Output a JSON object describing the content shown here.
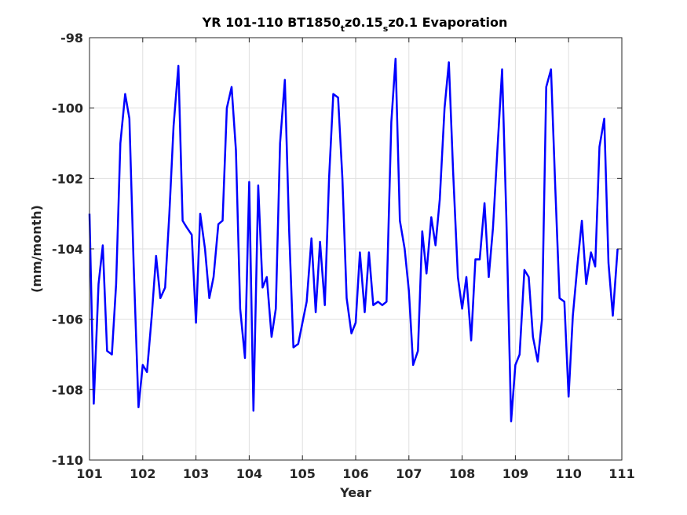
{
  "chart_data": {
    "type": "line",
    "title": {
      "prefix": "YR 101-110 BT1850",
      "sub_t": "t",
      "mid": "z0.15",
      "sub_s": "s",
      "suffix": "z0.1 Evaporation"
    },
    "xlabel": "Year",
    "ylabel": "(mm/month)",
    "xlim": [
      101,
      111
    ],
    "ylim": [
      -110,
      -98
    ],
    "xticks": [
      101,
      102,
      103,
      104,
      105,
      106,
      107,
      108,
      109,
      110,
      111
    ],
    "yticks": [
      -110,
      -108,
      -106,
      -104,
      -102,
      -100,
      -98
    ],
    "grid": true,
    "colors": {
      "series": "#0000ff",
      "axes": "#262626",
      "grid": "#dfdfdf"
    },
    "series": [
      {
        "x": [
          101.0,
          101.08,
          101.17,
          101.25,
          101.33,
          101.42,
          101.5,
          101.58,
          101.67,
          101.75,
          101.83,
          101.92,
          102.0,
          102.08,
          102.17,
          102.25,
          102.33,
          102.42,
          102.5,
          102.58,
          102.67,
          102.75,
          102.83,
          102.92,
          103.0,
          103.08,
          103.17,
          103.25,
          103.33,
          103.42,
          103.5,
          103.58,
          103.67,
          103.75,
          103.83,
          103.92,
          104.0,
          104.08,
          104.17,
          104.25,
          104.33,
          104.42,
          104.5,
          104.58,
          104.67,
          104.75,
          104.83,
          104.92,
          105.0,
          105.08,
          105.17,
          105.25,
          105.33,
          105.42,
          105.5,
          105.58,
          105.67,
          105.75,
          105.83,
          105.92,
          106.0,
          106.08,
          106.17,
          106.25,
          106.33,
          106.42,
          106.5,
          106.58,
          106.67,
          106.75,
          106.83,
          106.92,
          107.0,
          107.08,
          107.17,
          107.25,
          107.33,
          107.42,
          107.5,
          107.58,
          107.67,
          107.75,
          107.83,
          107.92,
          108.0,
          108.08,
          108.17,
          108.25,
          108.33,
          108.42,
          108.5,
          108.58,
          108.67,
          108.75,
          108.83,
          108.92,
          109.0,
          109.08,
          109.17,
          109.25,
          109.33,
          109.42,
          109.5,
          109.58,
          109.67,
          109.75,
          109.83,
          109.92,
          110.0,
          110.08,
          110.17,
          110.25,
          110.33,
          110.42,
          110.5,
          110.58,
          110.67,
          110.75,
          110.83,
          110.92
        ],
        "y": [
          -103.0,
          -108.4,
          -105.0,
          -103.9,
          -106.9,
          -107.0,
          -105.0,
          -101.0,
          -99.6,
          -100.3,
          -104.5,
          -108.5,
          -107.3,
          -107.5,
          -105.9,
          -104.2,
          -105.4,
          -105.1,
          -103.0,
          -100.5,
          -98.8,
          -103.2,
          -103.4,
          -103.6,
          -106.1,
          -103.0,
          -104.0,
          -105.4,
          -104.8,
          -103.3,
          -103.2,
          -100.0,
          -99.4,
          -101.2,
          -105.7,
          -107.1,
          -102.1,
          -108.6,
          -102.2,
          -105.1,
          -104.8,
          -106.5,
          -105.7,
          -101.0,
          -99.2,
          -103.5,
          -106.8,
          -106.7,
          -106.1,
          -105.5,
          -103.7,
          -105.8,
          -103.8,
          -105.6,
          -102.0,
          -99.6,
          -99.7,
          -102.0,
          -105.4,
          -106.4,
          -106.1,
          -104.1,
          -105.8,
          -104.1,
          -105.6,
          -105.5,
          -105.6,
          -105.5,
          -100.4,
          -98.6,
          -103.2,
          -104.0,
          -105.2,
          -107.3,
          -106.9,
          -103.5,
          -104.7,
          -103.1,
          -103.9,
          -102.6,
          -100.0,
          -98.7,
          -101.8,
          -104.8,
          -105.7,
          -104.8,
          -106.6,
          -104.3,
          -104.3,
          -102.7,
          -104.8,
          -103.4,
          -101.0,
          -98.9,
          -103.1,
          -108.9,
          -107.3,
          -107.0,
          -104.6,
          -104.8,
          -106.5,
          -107.2,
          -106.0,
          -99.4,
          -98.9,
          -102.3,
          -105.4,
          -105.5,
          -108.2,
          -105.9,
          -104.4,
          -103.2,
          -105.0,
          -104.1,
          -104.5,
          -101.1,
          -100.3,
          -104.4,
          -105.9,
          -104.0
        ]
      }
    ]
  }
}
